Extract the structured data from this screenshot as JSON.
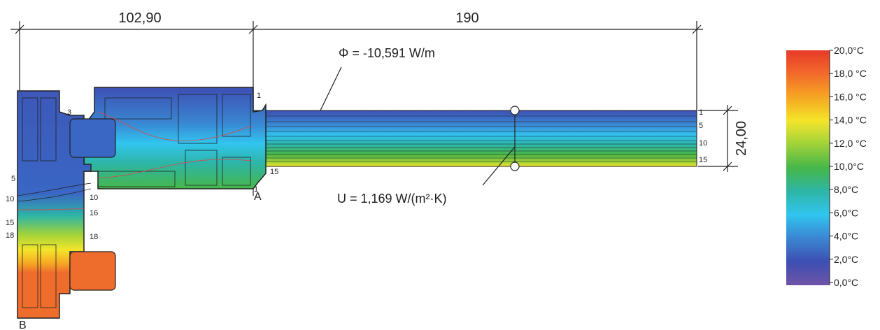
{
  "dimensions": {
    "frame_width": "102,90",
    "panel_width": "190",
    "panel_thickness": "24,00"
  },
  "heat_flow": {
    "label": "Φ = -10,591 W/m"
  },
  "u_value": {
    "label": "U = 1,169 W/(m²·K)"
  },
  "points": {
    "a": "A",
    "b": "B"
  },
  "isotherm_labels": {
    "frame_top_1": "1",
    "frame_3": "3",
    "left_5": "5",
    "left_10": "10",
    "left_15": "15",
    "left_18": "18",
    "inner_10": "10",
    "inner_16": "16",
    "inner_18": "18",
    "glass_1": "1",
    "glass_5": "5",
    "glass_10": "10",
    "glass_15": "15",
    "bottom_15": "15",
    "point_a_1": "1"
  },
  "color_scale": {
    "labels": [
      "20,0°C",
      "18,0 °C",
      "16,0 °C",
      "14,0 °C",
      "12,0 °C",
      "10,0°C",
      "8,0°C",
      "6,0°C",
      "4,0°C",
      "2,0°C",
      "0,0°C"
    ],
    "colors": [
      "#e8392a",
      "#f26b2b",
      "#f6a623",
      "#f4e52a",
      "#9fd23a",
      "#47b749",
      "#2eb5a6",
      "#31c4ef",
      "#3a86d2",
      "#3d4fb3",
      "#6f54a8"
    ]
  }
}
